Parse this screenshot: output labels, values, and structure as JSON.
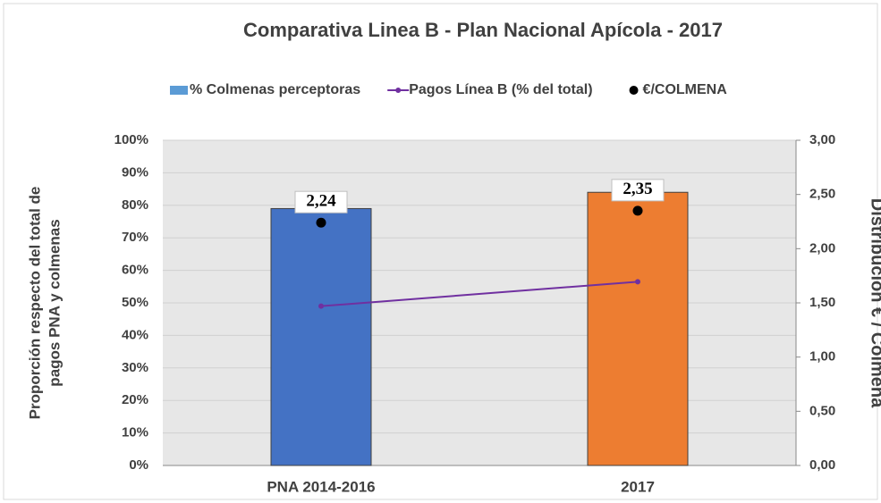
{
  "chart_data": {
    "type": "combo",
    "title": "Comparativa Linea B - Plan Nacional Apícola - 2017",
    "categories": [
      "PNA 2014-2016",
      "2017"
    ],
    "ylabel": [
      "Proporción respecto del total de",
      "pagos PNA y colmenas"
    ],
    "y2label": "Distribución € / Colmena",
    "series": [
      {
        "name": "% Colmenas perceptoras",
        "type": "bar",
        "color": "#5b9bd5",
        "colors": [
          "#4472c4",
          "#ed7d31"
        ],
        "values": [
          79,
          84
        ]
      },
      {
        "name": "Pagos Línea B (% del total)",
        "type": "line",
        "color": "#7030a0",
        "values": [
          49,
          56.5
        ]
      },
      {
        "name": "€/COLMENA",
        "type": "scatter",
        "axis": "y2",
        "color": "#000000",
        "values": [
          2.24,
          2.35
        ],
        "value_labels": [
          "2,24",
          "2,35"
        ]
      }
    ],
    "ylim": [
      0,
      100
    ],
    "yticks": [
      {
        "value": 0,
        "label": "0%"
      },
      {
        "value": 10,
        "label": "10%"
      },
      {
        "value": 20,
        "label": "20%"
      },
      {
        "value": 30,
        "label": "30%"
      },
      {
        "value": 40,
        "label": "40%"
      },
      {
        "value": 50,
        "label": "50%"
      },
      {
        "value": 60,
        "label": "60%"
      },
      {
        "value": 70,
        "label": "70%"
      },
      {
        "value": 80,
        "label": "80%"
      },
      {
        "value": 90,
        "label": "90%"
      },
      {
        "value": 100,
        "label": "100%"
      }
    ],
    "y2lim": [
      0,
      3
    ],
    "y2ticks": [
      {
        "value": 0,
        "label": "0,00"
      },
      {
        "value": 0.5,
        "label": "0,50"
      },
      {
        "value": 1,
        "label": "1,00"
      },
      {
        "value": 1.5,
        "label": "1,50"
      },
      {
        "value": 2,
        "label": "2,00"
      },
      {
        "value": 2.5,
        "label": "2,50"
      },
      {
        "value": 3,
        "label": "3,00"
      }
    ],
    "grid": true,
    "legend": "top"
  }
}
